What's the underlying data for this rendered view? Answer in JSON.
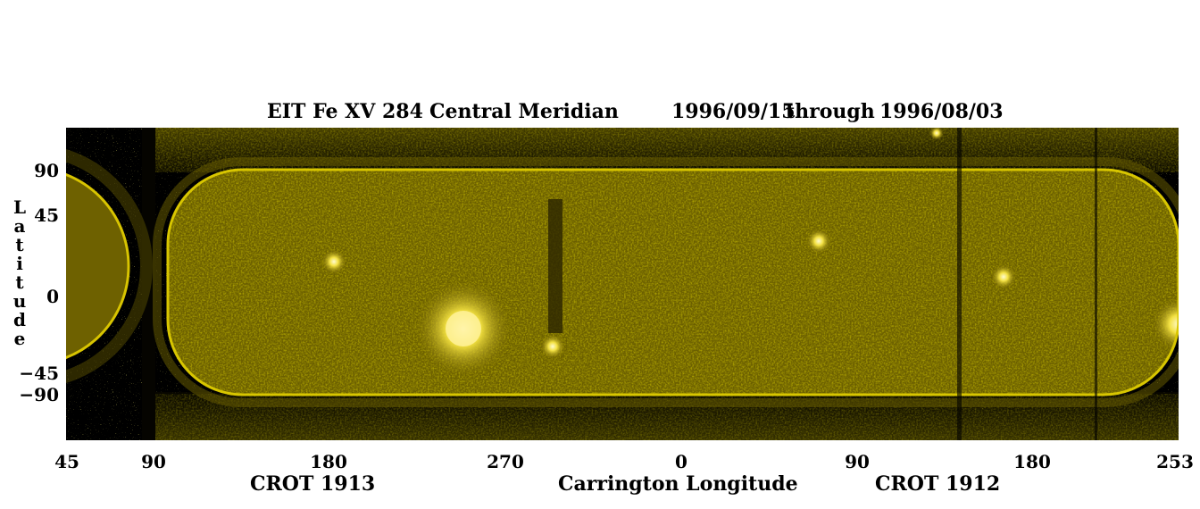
{
  "header": {
    "instrument": "EIT Fe XV 284",
    "mode": "Central Meridian",
    "date_start": "1996/09/15",
    "through": "through",
    "date_end": "1996/08/03"
  },
  "y_axis": {
    "title_letters": [
      "L",
      "a",
      "t",
      "i",
      "t",
      "u",
      "d",
      "e"
    ],
    "ticks": [
      "90",
      "45",
      "0",
      "−45",
      "−90"
    ]
  },
  "x_axis": {
    "ticks": [
      "45",
      "90",
      "180",
      "270",
      "0",
      "90",
      "180",
      "253"
    ],
    "title": "Carrington Longitude",
    "rotation_left": "CROT 1913",
    "rotation_right": "CROT 1912"
  },
  "colors": {
    "solar_tint": "#c8b400",
    "background": "#000000"
  }
}
